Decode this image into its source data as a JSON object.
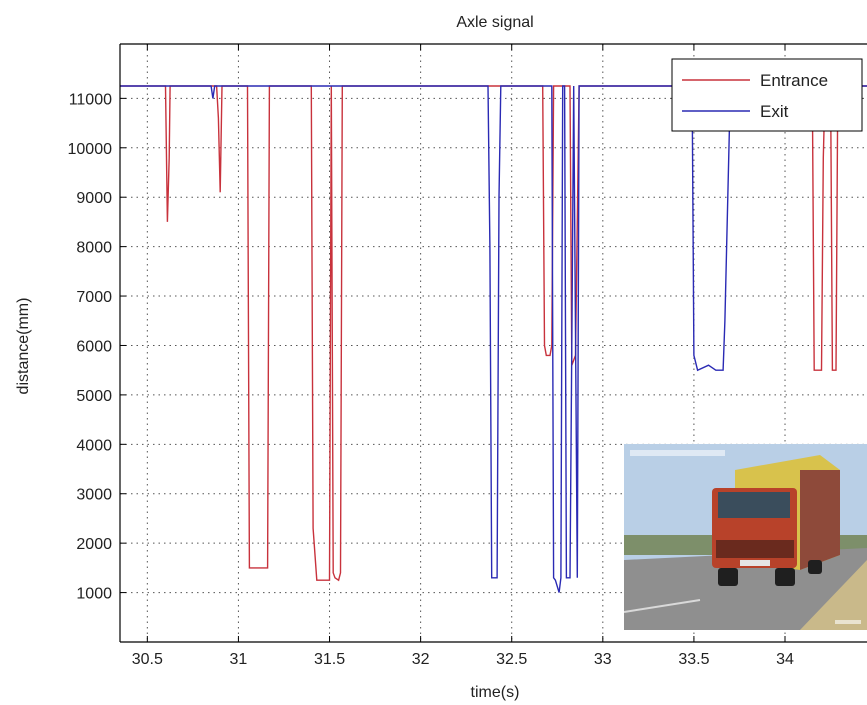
{
  "chart_data": {
    "type": "line",
    "title": "Axle signal",
    "xlabel": "time(s)",
    "ylabel": "distance(mm)",
    "xlim": [
      30.35,
      34.45
    ],
    "ylim": [
      0,
      12100
    ],
    "x_ticks": [
      30.5,
      31,
      31.5,
      32,
      32.5,
      33,
      33.5,
      34
    ],
    "x_tick_labels": [
      "30.5",
      "31",
      "31.5",
      "32",
      "32.5",
      "33",
      "33.5",
      "34"
    ],
    "y_ticks": [
      1000,
      2000,
      3000,
      4000,
      5000,
      6000,
      7000,
      8000,
      9000,
      10000,
      11000
    ],
    "y_tick_labels": [
      "1000",
      "2000",
      "3000",
      "4000",
      "5000",
      "6000",
      "7000",
      "8000",
      "9000",
      "10000",
      "11000"
    ],
    "grid": true,
    "legend_position": "top-right",
    "series": [
      {
        "name": "Entrance",
        "color": "#c8323c",
        "x": [
          30.35,
          30.6,
          30.61,
          30.62,
          30.625,
          30.88,
          30.89,
          30.9,
          30.91,
          31.05,
          31.06,
          31.07,
          31.16,
          31.17,
          31.4,
          31.41,
          31.43,
          31.5,
          31.51,
          31.52,
          31.53,
          31.55,
          31.56,
          31.57,
          32.67,
          32.68,
          32.69,
          32.71,
          32.72,
          32.73,
          32.82,
          32.83,
          32.85,
          32.86,
          32.87,
          34.15,
          34.16,
          34.17,
          34.2,
          34.21,
          34.22,
          34.25,
          34.26,
          34.28,
          34.29,
          34.3,
          34.45
        ],
        "y": [
          11250,
          11250,
          8500,
          9800,
          11250,
          11250,
          10600,
          9100,
          11250,
          11250,
          1500,
          1500,
          1500,
          11250,
          11250,
          2300,
          1250,
          1250,
          11250,
          1400,
          1300,
          1250,
          1400,
          11250,
          11250,
          6000,
          5800,
          5800,
          6000,
          11250,
          11250,
          5600,
          5800,
          8500,
          11250,
          11250,
          5500,
          5500,
          5500,
          9800,
          11250,
          11250,
          5500,
          5500,
          11250,
          11250,
          11250
        ]
      },
      {
        "name": "Exit",
        "color": "#2a2ab4",
        "x": [
          30.35,
          30.85,
          30.86,
          30.87,
          32.37,
          32.38,
          32.39,
          32.42,
          32.43,
          32.44,
          32.72,
          32.73,
          32.74,
          32.76,
          32.77,
          32.78,
          32.79,
          32.8,
          32.81,
          32.82,
          32.83,
          32.84,
          32.86,
          32.87,
          33.49,
          33.5,
          33.52,
          33.58,
          33.62,
          33.66,
          33.67,
          33.7,
          33.71,
          33.73,
          34.45
        ],
        "y": [
          11250,
          11250,
          11000,
          11250,
          11250,
          8000,
          1300,
          1300,
          9000,
          11250,
          11250,
          1300,
          1250,
          1000,
          1300,
          11250,
          11250,
          1300,
          1300,
          1300,
          6000,
          11250,
          1300,
          11250,
          11250,
          5800,
          5500,
          5600,
          5500,
          5500,
          6500,
          11250,
          11250,
          11250,
          11250
        ]
      }
    ]
  },
  "legend": {
    "entries": [
      {
        "label": "Entrance",
        "color": "#c8323c"
      },
      {
        "label": "Exit",
        "color": "#2a2ab4"
      }
    ]
  },
  "inset_photo": {
    "description_icon": "truck-photo",
    "sky_color": "#b9cfe6",
    "road_color": "#8f8f8f",
    "truck_cab_color": "#b8422a",
    "cargo_color": "#d8c24c"
  }
}
